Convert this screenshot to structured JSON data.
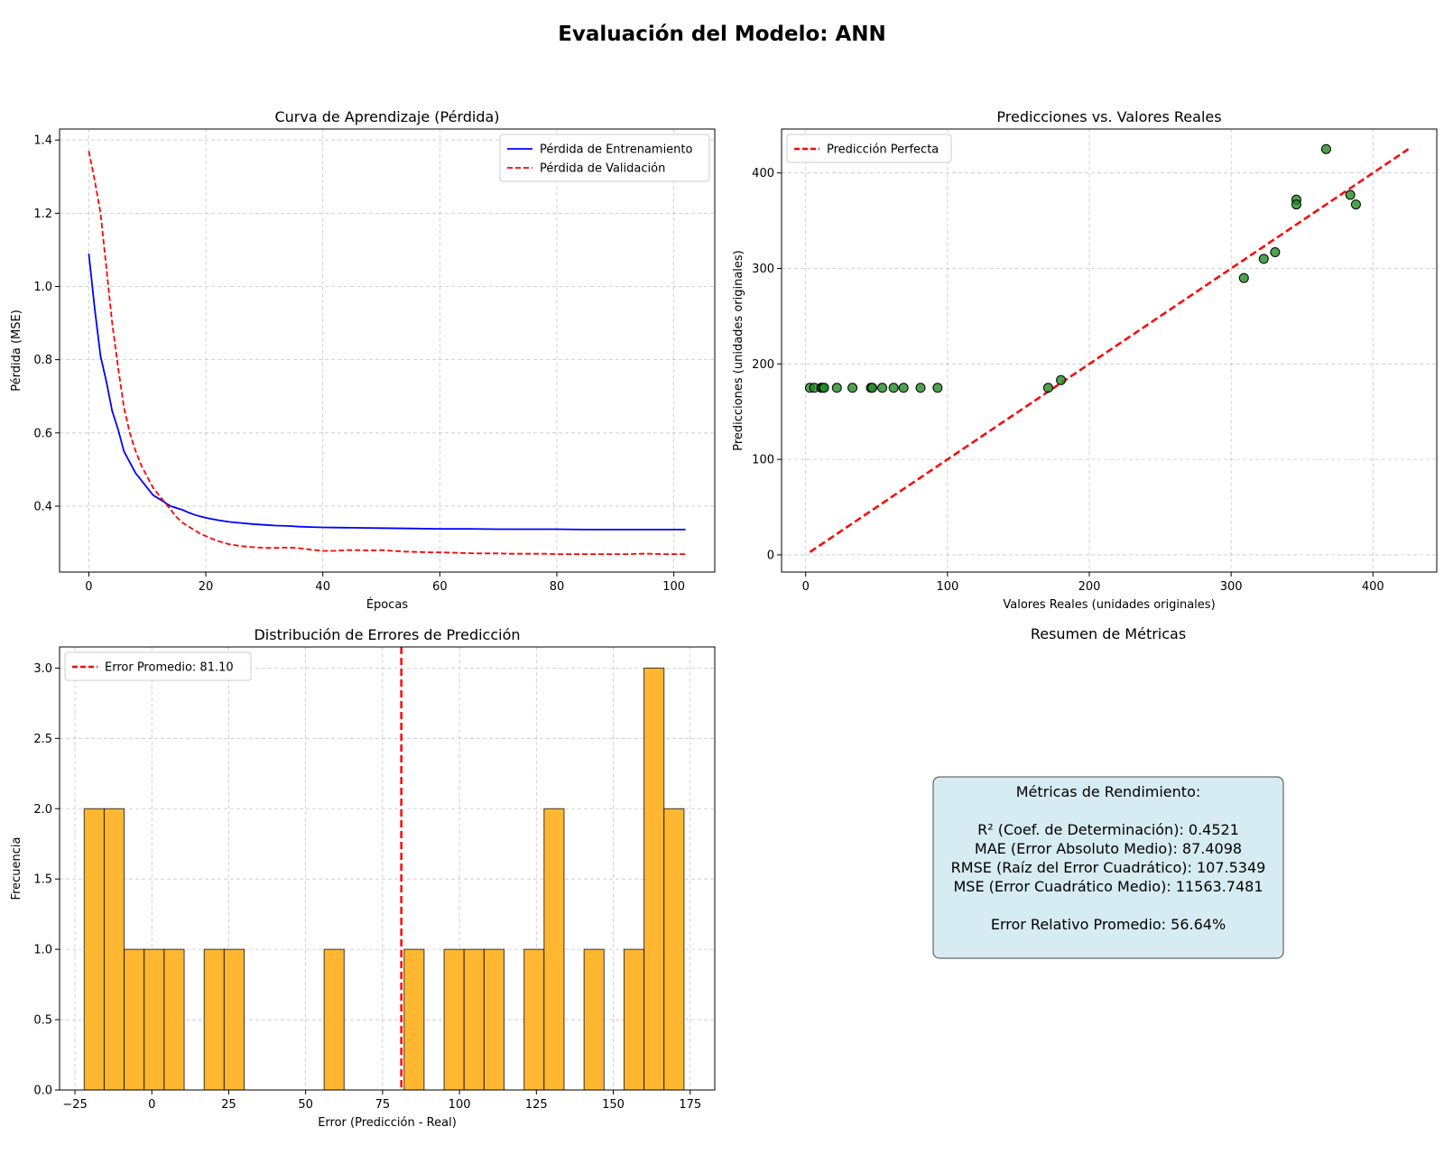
{
  "figure": {
    "title": "Evaluación del Modelo: ANN"
  },
  "chart_data": [
    {
      "type": "line",
      "title": "Curva de Aprendizaje (Pérdida)",
      "xlabel": "Épocas",
      "ylabel": "Pérdida (MSE)",
      "xlim": [
        -5,
        107
      ],
      "ylim": [
        0.22,
        1.43
      ],
      "xticks": [
        0,
        20,
        40,
        60,
        80,
        100
      ],
      "yticks": [
        0.4,
        0.6,
        0.8,
        1.0,
        1.2,
        1.4
      ],
      "xtick_labels": [
        "0",
        "20",
        "40",
        "60",
        "80",
        "100"
      ],
      "ytick_labels": [
        "0.4",
        "0.6",
        "0.8",
        "1.0",
        "1.2",
        "1.4"
      ],
      "grid": true,
      "legend": "top-right",
      "series": [
        {
          "name": "Pérdida de Entrenamiento",
          "color": "#0000ff",
          "style": "solid",
          "x": [
            0,
            1,
            2,
            3,
            4,
            5,
            6,
            7,
            8,
            9,
            10,
            11,
            12,
            13,
            14,
            15,
            16,
            17,
            18,
            19,
            20,
            22,
            24,
            26,
            28,
            30,
            32,
            34,
            36,
            38,
            40,
            45,
            50,
            55,
            60,
            65,
            70,
            75,
            80,
            85,
            90,
            95,
            102
          ],
          "y": [
            1.09,
            0.94,
            0.81,
            0.74,
            0.66,
            0.61,
            0.55,
            0.52,
            0.49,
            0.47,
            0.45,
            0.43,
            0.42,
            0.41,
            0.4,
            0.395,
            0.39,
            0.383,
            0.377,
            0.372,
            0.368,
            0.362,
            0.357,
            0.354,
            0.351,
            0.349,
            0.347,
            0.346,
            0.344,
            0.343,
            0.342,
            0.341,
            0.34,
            0.339,
            0.338,
            0.338,
            0.337,
            0.337,
            0.337,
            0.336,
            0.336,
            0.336,
            0.336
          ]
        },
        {
          "name": "Pérdida de Validación",
          "color": "#ff0000",
          "style": "dashed",
          "x": [
            0,
            1,
            2,
            3,
            4,
            5,
            6,
            7,
            8,
            9,
            10,
            11,
            12,
            13,
            14,
            15,
            16,
            17,
            18,
            19,
            20,
            22,
            24,
            26,
            28,
            30,
            32,
            34,
            36,
            38,
            40,
            42,
            44,
            46,
            48,
            50,
            52,
            54,
            56,
            58,
            60,
            62,
            64,
            66,
            68,
            70,
            72,
            74,
            76,
            78,
            80,
            82,
            84,
            86,
            88,
            90,
            92,
            94,
            96,
            98,
            100,
            102
          ],
          "y": [
            1.37,
            1.29,
            1.2,
            1.05,
            0.9,
            0.78,
            0.67,
            0.6,
            0.55,
            0.51,
            0.48,
            0.45,
            0.43,
            0.41,
            0.39,
            0.37,
            0.355,
            0.345,
            0.335,
            0.325,
            0.318,
            0.305,
            0.296,
            0.291,
            0.288,
            0.286,
            0.286,
            0.287,
            0.285,
            0.281,
            0.278,
            0.278,
            0.28,
            0.28,
            0.279,
            0.28,
            0.278,
            0.276,
            0.275,
            0.274,
            0.274,
            0.273,
            0.272,
            0.271,
            0.271,
            0.271,
            0.27,
            0.27,
            0.27,
            0.27,
            0.269,
            0.269,
            0.269,
            0.269,
            0.269,
            0.269,
            0.269,
            0.27,
            0.27,
            0.269,
            0.269,
            0.269
          ]
        }
      ]
    },
    {
      "type": "scatter",
      "title": "Predicciones vs. Valores Reales",
      "xlabel": "Valores Reales (unidades originales)",
      "ylabel": "Predicciones (unidades originales)",
      "xlim": [
        -17,
        445
      ],
      "ylim": [
        -18,
        446
      ],
      "xticks": [
        0,
        100,
        200,
        300,
        400
      ],
      "yticks": [
        0,
        100,
        200,
        300,
        400
      ],
      "xtick_labels": [
        "0",
        "100",
        "200",
        "300",
        "400"
      ],
      "ytick_labels": [
        "0",
        "100",
        "200",
        "300",
        "400"
      ],
      "grid": true,
      "legend": "top-left",
      "points_color": "#228B22",
      "points": {
        "x": [
          3,
          6,
          11,
          12,
          13,
          22,
          33,
          46,
          47,
          54,
          62,
          69,
          81,
          93,
          171,
          180,
          309,
          323,
          331,
          346,
          346,
          367,
          384,
          388
        ],
        "y": [
          175,
          175,
          175,
          175,
          175,
          175,
          175,
          175,
          175,
          175,
          175,
          175,
          175,
          175,
          175,
          183,
          290,
          310,
          317,
          372,
          367,
          425,
          377,
          367
        ]
      },
      "reference_line": {
        "name": "Predicción Perfecta",
        "color": "#ff0000",
        "style": "dashed",
        "x": [
          3,
          425
        ],
        "y": [
          3,
          425
        ]
      }
    },
    {
      "type": "bar",
      "subtype": "histogram",
      "title": "Distribución de Errores de Predicción",
      "xlabel": "Error (Predicción - Real)",
      "ylabel": "Frecuencia",
      "xlim": [
        -30,
        183
      ],
      "ylim": [
        0,
        3.15
      ],
      "xticks": [
        -25,
        0,
        25,
        50,
        75,
        100,
        125,
        150,
        175
      ],
      "yticks": [
        0.0,
        0.5,
        1.0,
        1.5,
        2.0,
        2.5,
        3.0
      ],
      "xtick_labels": [
        "−25",
        "0",
        "25",
        "50",
        "75",
        "100",
        "125",
        "150",
        "175"
      ],
      "ytick_labels": [
        "0.0",
        "0.5",
        "1.0",
        "1.5",
        "2.0",
        "2.5",
        "3.0"
      ],
      "grid": true,
      "legend": "top-left",
      "bar_color": "#FFB732",
      "bin_start": -22,
      "bin_width": 6.5,
      "counts": [
        2,
        2,
        1,
        1,
        1,
        0,
        1,
        1,
        0,
        0,
        0,
        0,
        1,
        0,
        0,
        0,
        1,
        0,
        1,
        1,
        1,
        0,
        1,
        2,
        0,
        1,
        0,
        1,
        3,
        2
      ],
      "mean_line": {
        "name": "Error Promedio: 81.10",
        "value": 81.1,
        "color": "#ff0000",
        "style": "dashed"
      }
    }
  ],
  "metrics_panel": {
    "title": "Resumen de Métricas",
    "heading": "Métricas de Rendimiento:",
    "lines": [
      "R² (Coef. de Determinación): 0.4521",
      "MAE (Error Absoluto Medio): 87.4098",
      "RMSE (Raíz del Error Cuadrático): 107.5349",
      "MSE (Error Cuadrático Medio): 11563.7481"
    ],
    "footer": "Error Relativo Promedio: 56.64%",
    "box_color": "#ADD8E6"
  }
}
